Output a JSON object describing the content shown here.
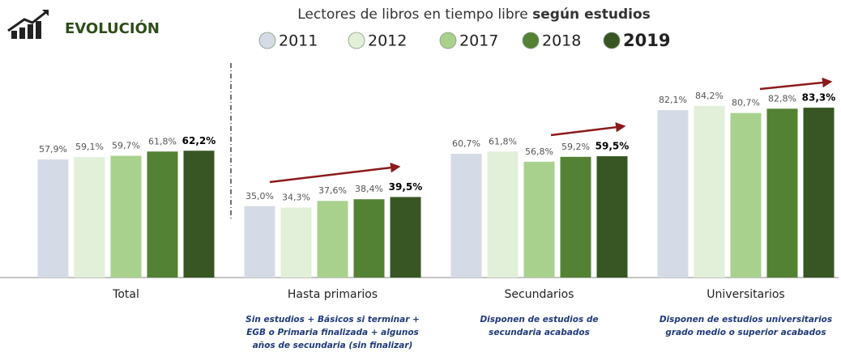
{
  "chart_data": {
    "type": "bar",
    "header": "EVOLUCIÓN",
    "title": "Lectores de libros en tiempo libre",
    "title_bold": "según estudios",
    "categories": [
      "Total",
      "Hasta primarios",
      "Secundarios",
      "Universitarios"
    ],
    "category_notes": [
      null,
      [
        "Sin estudios + Básicos si terminar +",
        "EGB o Primaria finalizada + algunos",
        "años de secundaria (sin finalizar)"
      ],
      [
        "Disponen de estudios de",
        "secundaria acabados"
      ],
      [
        "Disponen de estudios universitarios",
        "grado medio o superior acabados"
      ]
    ],
    "ylim": [
      0,
      100
    ],
    "series": [
      {
        "name": "2011",
        "color": "#d5dbe6",
        "values": [
          57.9,
          35.0,
          60.7,
          82.1
        ],
        "value_labels": [
          "57,9%",
          "35,0%",
          "60,7%",
          "82,1%"
        ]
      },
      {
        "name": "2012",
        "color": "#e2efd9",
        "values": [
          59.1,
          34.3,
          61.8,
          84.2
        ],
        "value_labels": [
          "59,1%",
          "34,3%",
          "61,8%",
          "84,2%"
        ]
      },
      {
        "name": "2017",
        "color": "#a9d18e",
        "values": [
          59.7,
          37.6,
          56.8,
          80.7
        ],
        "value_labels": [
          "59,7%",
          "37,6%",
          "56,8%",
          "80,7%"
        ]
      },
      {
        "name": "2018",
        "color": "#548235",
        "values": [
          61.8,
          38.4,
          59.2,
          82.8
        ],
        "value_labels": [
          "61,8%",
          "38,4%",
          "59,2%",
          "82,8%"
        ]
      },
      {
        "name": "2019",
        "color": "#375623",
        "values": [
          62.2,
          39.5,
          59.5,
          83.3
        ],
        "value_labels": [
          "62,2%",
          "39,5%",
          "59,5%",
          "83,3%"
        ]
      }
    ]
  }
}
